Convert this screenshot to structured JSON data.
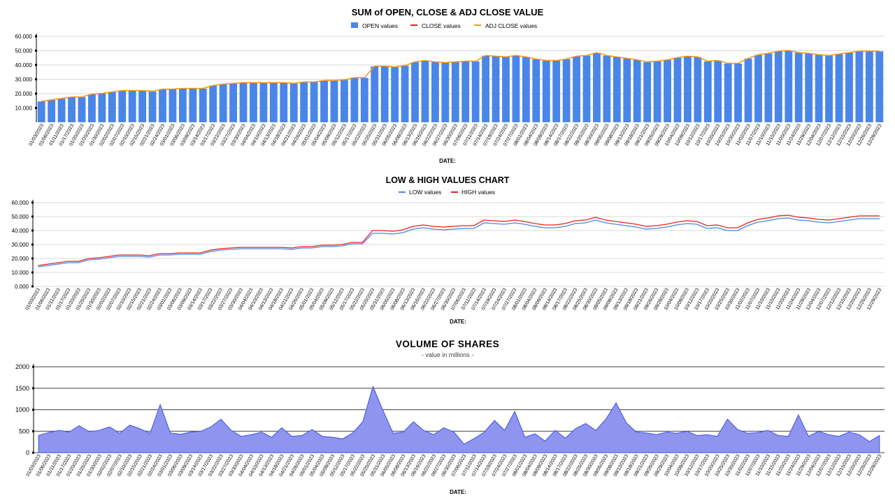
{
  "chart_data": [
    {
      "type": "bar",
      "title": "SUM of OPEN,  CLOSE & ADJ CLOSE VALUE",
      "xlabel": "DATE:",
      "ylabel": "",
      "ylim": [
        0,
        60000
      ],
      "yticks": [
        "10.000",
        "20.000",
        "30.000",
        "40.000",
        "50.000",
        "60.000"
      ],
      "grid": "horizontal",
      "legend_position": "top-center",
      "categories": [
        "01/03/2023",
        "01/06/2023",
        "01/11/2023",
        "01/17/2023",
        "01/20/2023",
        "01/25/2023",
        "01/30/2023",
        "02/02/2023",
        "02/07/2023",
        "02/10/2023",
        "02/15/2023",
        "02/21/2023",
        "02/24/2023",
        "03/01/2023",
        "03/06/2023",
        "03/09/2023",
        "03/14/2023",
        "03/17/2023",
        "03/22/2023",
        "03/27/2023",
        "03/30/2023",
        "04/04/2023",
        "04/10/2023",
        "04/13/2023",
        "04/18/2023",
        "04/21/2023",
        "04/26/2023",
        "05/01/2023",
        "05/04/2023",
        "05/09/2023",
        "05/12/2023",
        "05/17/2023",
        "05/22/2023",
        "05/25/2023",
        "05/31/2023",
        "06/05/2023",
        "06/08/2023",
        "06/13/2023",
        "06/16/2023",
        "06/22/2023",
        "06/27/2023",
        "06/30/2023",
        "07/06/2023",
        "07/11/2023",
        "07/14/2023",
        "07/19/2023",
        "07/24/2023",
        "07/27/2023",
        "08/01/2023",
        "08/04/2023",
        "08/09/2023",
        "08/14/2023",
        "08/17/2023",
        "08/22/2023",
        "08/25/2023",
        "08/30/2023",
        "09/05/2023",
        "09/08/2023",
        "09/13/2023",
        "09/18/2023",
        "09/21/2023",
        "09/26/2023",
        "09/29/2023",
        "10/04/2023",
        "10/09/2023",
        "10/12/2023",
        "10/17/2023",
        "10/20/2023",
        "10/25/2023",
        "10/30/2023",
        "11/02/2023",
        "11/07/2023",
        "11/10/2023",
        "11/15/2023",
        "11/20/2023",
        "11/24/2023",
        "11/29/2023",
        "12/04/2023",
        "12/07/2023",
        "12/12/2023",
        "12/15/2023",
        "12/20/2023",
        "12/26/2023",
        "12/29/2023"
      ],
      "series": [
        {
          "name": "OPEN values",
          "color": "#4a86e8",
          "values": [
            14500,
            15500,
            16500,
            17500,
            17500,
            19500,
            20000,
            21000,
            22000,
            22000,
            22000,
            21500,
            23000,
            23000,
            23500,
            23500,
            23500,
            25500,
            26500,
            27000,
            27500,
            27500,
            27500,
            27500,
            27500,
            27000,
            28000,
            28000,
            29000,
            29000,
            29500,
            31000,
            31000,
            39000,
            39000,
            38500,
            39500,
            42000,
            43000,
            42000,
            41500,
            42000,
            42500,
            42500,
            46500,
            46000,
            45500,
            46500,
            45500,
            44000,
            43000,
            43000,
            44000,
            46000,
            46500,
            48500,
            46500,
            45500,
            44500,
            43500,
            42000,
            42500,
            43500,
            45000,
            46000,
            45500,
            42500,
            43000,
            41000,
            41000,
            44500,
            47000,
            48000,
            49500,
            50000,
            48500,
            48000,
            47000,
            46500,
            47500,
            48500,
            49500,
            49500,
            49500
          ]
        },
        {
          "name": "CLOSE values",
          "color": "#e8231a",
          "values": [
            14600,
            15600,
            16600,
            17600,
            17600,
            19600,
            20100,
            21100,
            22100,
            22100,
            22100,
            21600,
            23100,
            23100,
            23600,
            23600,
            23600,
            25600,
            26600,
            27100,
            27600,
            27600,
            27600,
            27600,
            27600,
            27100,
            28100,
            28100,
            29100,
            29100,
            29600,
            31100,
            31100,
            39100,
            39100,
            38600,
            39600,
            42100,
            43100,
            42100,
            41600,
            42100,
            42600,
            42600,
            46600,
            46100,
            45600,
            46600,
            45600,
            44100,
            43100,
            43100,
            44100,
            46100,
            46600,
            48600,
            46600,
            45600,
            44600,
            43600,
            42100,
            42600,
            43600,
            45100,
            46100,
            45600,
            42600,
            43100,
            41100,
            41100,
            44600,
            47100,
            48100,
            49600,
            50100,
            48600,
            48100,
            47100,
            46600,
            47600,
            48600,
            49600,
            49600,
            49600
          ]
        },
        {
          "name": "ADJ CLOSE values",
          "color": "#f4a11a",
          "values": [
            14700,
            15700,
            16700,
            17700,
            17700,
            19700,
            20200,
            21200,
            22200,
            22200,
            22200,
            21700,
            23200,
            23200,
            23700,
            23700,
            23700,
            25700,
            26700,
            27200,
            27700,
            27700,
            27700,
            27700,
            27700,
            27200,
            28200,
            28200,
            29200,
            29200,
            29700,
            31200,
            31200,
            39200,
            39200,
            38700,
            39700,
            42200,
            43200,
            42200,
            41700,
            42200,
            42700,
            42700,
            46700,
            46200,
            45700,
            46700,
            45700,
            44200,
            43200,
            43200,
            44200,
            46200,
            46700,
            48700,
            46700,
            45700,
            44700,
            43700,
            42200,
            42700,
            43700,
            45200,
            46200,
            45700,
            42700,
            43200,
            41200,
            41200,
            44700,
            47200,
            48200,
            49700,
            50200,
            48700,
            48200,
            47200,
            46700,
            47700,
            48700,
            49700,
            49700,
            49700
          ]
        }
      ]
    },
    {
      "type": "line",
      "title": "LOW & HIGH VALUES CHART",
      "xlabel": "DATE:",
      "ylabel": "",
      "ylim": [
        0,
        60000
      ],
      "yticks": [
        "0.000",
        "10.000",
        "20.000",
        "30.000",
        "40.000",
        "50.000",
        "60.000"
      ],
      "grid": "horizontal",
      "legend_position": "top-center",
      "categories": [
        "01/03/2023",
        "01/06/2023",
        "01/11/2023",
        "01/17/2023",
        "01/20/2023",
        "01/25/2023",
        "01/30/2023",
        "02/02/2023",
        "02/07/2023",
        "02/10/2023",
        "02/15/2023",
        "02/21/2023",
        "02/24/2023",
        "03/01/2023",
        "03/06/2023",
        "03/09/2023",
        "03/14/2023",
        "03/17/2023",
        "03/22/2023",
        "03/27/2023",
        "03/30/2023",
        "04/04/2023",
        "04/10/2023",
        "04/13/2023",
        "04/18/2023",
        "04/21/2023",
        "04/26/2023",
        "05/01/2023",
        "05/04/2023",
        "05/09/2023",
        "05/12/2023",
        "05/17/2023",
        "05/22/2023",
        "05/25/2023",
        "05/31/2023",
        "06/05/2023",
        "06/08/2023",
        "06/13/2023",
        "06/16/2023",
        "06/22/2023",
        "06/27/2023",
        "06/30/2023",
        "07/06/2023",
        "07/11/2023",
        "07/14/2023",
        "07/19/2023",
        "07/24/2023",
        "07/27/2023",
        "08/01/2023",
        "08/04/2023",
        "08/09/2023",
        "08/14/2023",
        "08/17/2023",
        "08/22/2023",
        "08/25/2023",
        "08/30/2023",
        "09/05/2023",
        "09/08/2023",
        "09/13/2023",
        "09/18/2023",
        "09/21/2023",
        "09/26/2023",
        "09/29/2023",
        "10/04/2023",
        "10/09/2023",
        "10/12/2023",
        "10/17/2023",
        "10/20/2023",
        "10/25/2023",
        "10/30/2023",
        "11/02/2023",
        "11/07/2023",
        "11/10/2023",
        "11/15/2023",
        "11/20/2023",
        "11/24/2023",
        "11/29/2023",
        "12/04/2023",
        "12/07/2023",
        "12/12/2023",
        "12/15/2023",
        "12/20/2023",
        "12/26/2023",
        "12/29/2023"
      ],
      "series": [
        {
          "name": "LOW values",
          "color": "#4a86e8",
          "values": [
            14000,
            15000,
            16000,
            17000,
            17000,
            19000,
            19500,
            20500,
            21500,
            21500,
            21500,
            21000,
            22500,
            22500,
            23000,
            23000,
            23000,
            25000,
            26000,
            26500,
            27000,
            27000,
            27000,
            27000,
            27000,
            26500,
            27500,
            27500,
            28500,
            28500,
            29000,
            30500,
            30500,
            38000,
            38000,
            37500,
            38500,
            41000,
            42000,
            41000,
            40500,
            41000,
            41500,
            41500,
            45500,
            45000,
            44500,
            45500,
            44500,
            43000,
            42000,
            42000,
            43000,
            45000,
            45500,
            47500,
            45500,
            44500,
            43500,
            42500,
            41000,
            41500,
            42500,
            44000,
            45000,
            44500,
            41500,
            42000,
            40000,
            40000,
            43500,
            46000,
            47000,
            48500,
            49000,
            47500,
            47000,
            46000,
            45500,
            46500,
            47500,
            48500,
            48500,
            48500
          ]
        },
        {
          "name": "HIGH values",
          "color": "#e8231a",
          "values": [
            15000,
            16000,
            17000,
            18000,
            18000,
            20000,
            20500,
            21500,
            22500,
            22500,
            22500,
            22000,
            23500,
            23500,
            24000,
            24000,
            24000,
            26000,
            27000,
            27500,
            28000,
            28000,
            28000,
            28000,
            28000,
            27500,
            28500,
            28500,
            29500,
            29500,
            30000,
            31500,
            31500,
            40000,
            40000,
            39500,
            40500,
            43000,
            44000,
            43000,
            42500,
            43000,
            43500,
            43500,
            47500,
            47000,
            46500,
            47500,
            46500,
            45000,
            44000,
            44000,
            45000,
            47000,
            47500,
            49500,
            47500,
            46500,
            45500,
            44500,
            43000,
            43500,
            44500,
            46000,
            47000,
            46500,
            43500,
            44000,
            42000,
            42000,
            45500,
            48000,
            49000,
            50500,
            51000,
            49500,
            49000,
            48000,
            47500,
            48500,
            49500,
            50500,
            50500,
            50500
          ]
        }
      ]
    },
    {
      "type": "area",
      "title": "VOLUME OF SHARES",
      "subtitle": "- value in millions -",
      "xlabel": "DATE:",
      "ylabel": "",
      "ylim": [
        0,
        2000
      ],
      "yticks": [
        "0",
        "500",
        "1000",
        "1500",
        "2000"
      ],
      "grid": "horizontal",
      "categories": [
        "01/03/2023",
        "01/06/2023",
        "01/11/2023",
        "01/17/2023",
        "01/20/2023",
        "01/25/2023",
        "01/30/2023",
        "02/02/2023",
        "02/07/2023",
        "02/10/2023",
        "02/15/2023",
        "02/21/2023",
        "02/24/2023",
        "03/01/2023",
        "03/06/2023",
        "03/09/2023",
        "03/14/2023",
        "03/17/2023",
        "03/22/2023",
        "03/27/2023",
        "03/30/2023",
        "04/04/2023",
        "04/10/2023",
        "04/13/2023",
        "04/18/2023",
        "04/21/2023",
        "04/26/2023",
        "05/01/2023",
        "05/04/2023",
        "05/09/2023",
        "05/12/2023",
        "05/17/2023",
        "05/22/2023",
        "05/25/2023",
        "05/31/2023",
        "06/05/2023",
        "06/08/2023",
        "06/13/2023",
        "06/16/2023",
        "06/22/2023",
        "06/27/2023",
        "06/30/2023",
        "07/06/2023",
        "07/11/2023",
        "07/14/2023",
        "07/19/2023",
        "07/24/2023",
        "07/27/2023",
        "08/01/2023",
        "08/04/2023",
        "08/09/2023",
        "08/14/2023",
        "08/17/2023",
        "08/22/2023",
        "08/25/2023",
        "08/30/2023",
        "09/05/2023",
        "09/08/2023",
        "09/13/2023",
        "09/18/2023",
        "09/21/2023",
        "09/26/2023",
        "09/29/2023",
        "10/04/2023",
        "10/09/2023",
        "10/12/2023",
        "10/17/2023",
        "10/20/2023",
        "10/25/2023",
        "10/30/2023",
        "11/02/2023",
        "11/07/2023",
        "11/10/2023",
        "11/15/2023",
        "11/20/2023",
        "11/24/2023",
        "11/29/2023",
        "12/04/2023",
        "12/07/2023",
        "12/12/2023",
        "12/15/2023",
        "12/20/2023",
        "12/26/2023",
        "12/29/2023"
      ],
      "series": [
        {
          "name": "",
          "color": "#3d4fe0",
          "values": [
            400,
            470,
            520,
            480,
            630,
            490,
            520,
            600,
            450,
            640,
            560,
            450,
            1120,
            460,
            430,
            480,
            500,
            600,
            780,
            520,
            380,
            420,
            480,
            360,
            580,
            380,
            400,
            540,
            380,
            360,
            320,
            460,
            720,
            1540,
            980,
            450,
            480,
            720,
            520,
            420,
            580,
            480,
            200,
            330,
            480,
            750,
            520,
            960,
            360,
            440,
            270,
            520,
            340,
            560,
            680,
            520,
            780,
            1160,
            700,
            480,
            460,
            420,
            480,
            450,
            500,
            400,
            420,
            380,
            780,
            540,
            450,
            470,
            520,
            400,
            380,
            880,
            380,
            500,
            420,
            380,
            480,
            420,
            260,
            400
          ]
        }
      ]
    }
  ]
}
